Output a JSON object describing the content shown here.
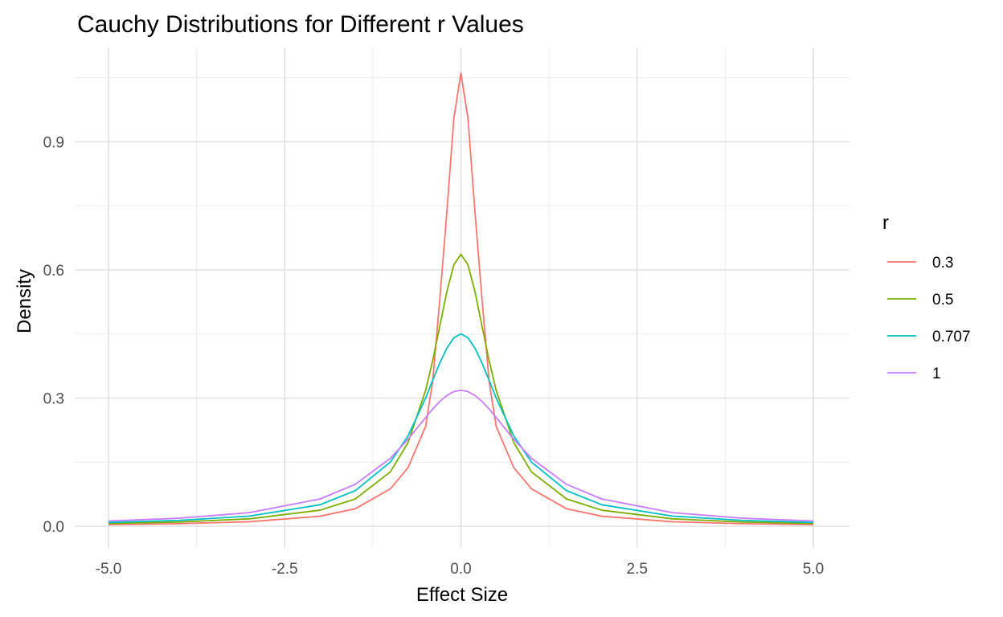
{
  "chart_data": {
    "type": "line",
    "title": "Cauchy Distributions for Different r Values",
    "xlabel": "Effect Size",
    "ylabel": "Density",
    "xlim": [
      -5.0,
      5.0
    ],
    "ylim": [
      0.0,
      1.06
    ],
    "x_ticks": [
      -5.0,
      -2.5,
      0.0,
      2.5,
      5.0
    ],
    "x_tick_labels": [
      "-5.0",
      "-2.5",
      "0.0",
      "2.5",
      "5.0"
    ],
    "y_ticks": [
      0.0,
      0.3,
      0.6,
      0.9
    ],
    "y_tick_labels": [
      "0.0",
      "0.3",
      "0.6",
      "0.9"
    ],
    "grid": true,
    "legend": {
      "title": "r",
      "placement": "right"
    },
    "x": [
      -5.0,
      -4.0,
      -3.0,
      -2.0,
      -1.5,
      -1.0,
      -0.75,
      -0.5,
      -0.4,
      -0.3,
      -0.2,
      -0.1,
      0.0,
      0.1,
      0.2,
      0.3,
      0.4,
      0.5,
      0.75,
      1.0,
      1.5,
      2.0,
      3.0,
      4.0,
      5.0
    ],
    "series": [
      {
        "name": "0.3",
        "color": "#F8766D",
        "values": [
          0.0038,
          0.0059,
          0.0105,
          0.0234,
          0.0408,
          0.0876,
          0.1372,
          0.234,
          0.3395,
          0.5305,
          0.7344,
          0.9549,
          1.061,
          0.9549,
          0.7344,
          0.5305,
          0.3395,
          0.234,
          0.1372,
          0.0876,
          0.0408,
          0.0234,
          0.0105,
          0.0059,
          0.0038
        ]
      },
      {
        "name": "0.5",
        "color": "#7CAE00",
        "values": [
          0.0063,
          0.0098,
          0.0173,
          0.0375,
          0.0637,
          0.1273,
          0.1959,
          0.3183,
          0.3882,
          0.4681,
          0.5488,
          0.6121,
          0.6366,
          0.6121,
          0.5488,
          0.4681,
          0.3882,
          0.3183,
          0.1959,
          0.1273,
          0.0637,
          0.0375,
          0.0173,
          0.0098,
          0.0063
        ]
      },
      {
        "name": "0.707",
        "color": "#00BFC4",
        "values": [
          0.0088,
          0.0136,
          0.0237,
          0.0502,
          0.0832,
          0.1504,
          0.2113,
          0.3003,
          0.3419,
          0.3817,
          0.4167,
          0.4413,
          0.4502,
          0.4413,
          0.4167,
          0.3817,
          0.3419,
          0.3003,
          0.2113,
          0.1504,
          0.0832,
          0.0502,
          0.0237,
          0.0136,
          0.0088
        ]
      },
      {
        "name": "1",
        "color": "#C77CFF",
        "values": [
          0.0122,
          0.0187,
          0.0318,
          0.0637,
          0.0979,
          0.1592,
          0.2037,
          0.2546,
          0.2744,
          0.292,
          0.3061,
          0.3152,
          0.3183,
          0.3152,
          0.3061,
          0.292,
          0.2744,
          0.2546,
          0.2037,
          0.1592,
          0.0979,
          0.0637,
          0.0318,
          0.0187,
          0.0122
        ]
      }
    ]
  }
}
